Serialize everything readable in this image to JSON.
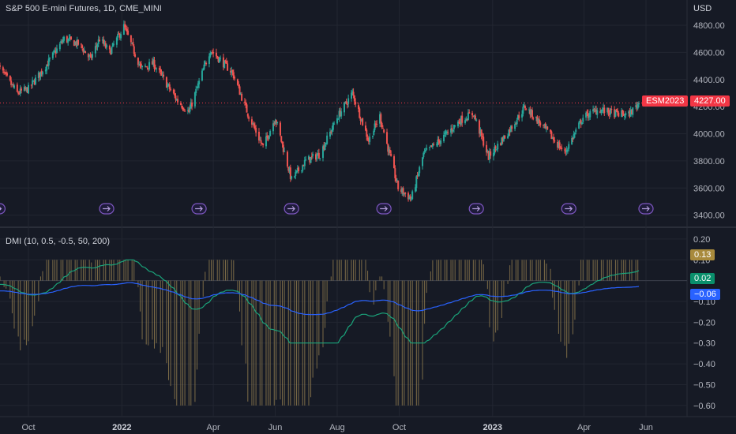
{
  "chart_data": [
    {
      "type": "candlestick",
      "title": "S&P 500 E-mini Futures, 1D, CME_MINI",
      "currency": "USD",
      "y_ticks": [
        "4800.00",
        "4600.00",
        "4400.00",
        "4200.00",
        "4000.00",
        "3800.00",
        "3600.00",
        "3400.00"
      ],
      "ylim": [
        3340,
        4870
      ],
      "x_ticks": [
        {
          "label": "Oct",
          "bold": false
        },
        {
          "label": "2022",
          "bold": true
        },
        {
          "label": "Apr",
          "bold": false
        },
        {
          "label": "Jun",
          "bold": false
        },
        {
          "label": "Aug",
          "bold": false
        },
        {
          "label": "Oct",
          "bold": false
        },
        {
          "label": "2023",
          "bold": true
        },
        {
          "label": "Apr",
          "bold": false
        },
        {
          "label": "Jun",
          "bold": false
        }
      ],
      "symbol_label": "ESM2023",
      "last_price": "4227.00",
      "last_value": 4227,
      "approx_close_path": [
        {
          "date": "2021-09-01",
          "close": 4500
        },
        {
          "date": "2021-09-20",
          "close": 4300
        },
        {
          "date": "2021-10-01",
          "close": 4330
        },
        {
          "date": "2021-10-20",
          "close": 4520
        },
        {
          "date": "2021-11-05",
          "close": 4700
        },
        {
          "date": "2021-11-20",
          "close": 4660
        },
        {
          "date": "2021-12-01",
          "close": 4550
        },
        {
          "date": "2021-12-10",
          "close": 4700
        },
        {
          "date": "2021-12-20",
          "close": 4600
        },
        {
          "date": "2022-01-03",
          "close": 4790
        },
        {
          "date": "2022-01-20",
          "close": 4480
        },
        {
          "date": "2022-02-01",
          "close": 4520
        },
        {
          "date": "2022-02-24",
          "close": 4250
        },
        {
          "date": "2022-03-08",
          "close": 4160
        },
        {
          "date": "2022-03-29",
          "close": 4620
        },
        {
          "date": "2022-04-20",
          "close": 4450
        },
        {
          "date": "2022-05-05",
          "close": 4150
        },
        {
          "date": "2022-05-20",
          "close": 3900
        },
        {
          "date": "2022-06-01",
          "close": 4120
        },
        {
          "date": "2022-06-17",
          "close": 3660
        },
        {
          "date": "2022-07-01",
          "close": 3800
        },
        {
          "date": "2022-07-15",
          "close": 3850
        },
        {
          "date": "2022-08-01",
          "close": 4120
        },
        {
          "date": "2022-08-16",
          "close": 4300
        },
        {
          "date": "2022-09-01",
          "close": 3950
        },
        {
          "date": "2022-09-12",
          "close": 4130
        },
        {
          "date": "2022-09-30",
          "close": 3600
        },
        {
          "date": "2022-10-13",
          "close": 3520
        },
        {
          "date": "2022-10-25",
          "close": 3850
        },
        {
          "date": "2022-11-10",
          "close": 3950
        },
        {
          "date": "2022-11-30",
          "close": 4100
        },
        {
          "date": "2022-12-13",
          "close": 4150
        },
        {
          "date": "2022-12-28",
          "close": 3830
        },
        {
          "date": "2023-01-15",
          "close": 4000
        },
        {
          "date": "2023-02-02",
          "close": 4200
        },
        {
          "date": "2023-02-20",
          "close": 4050
        },
        {
          "date": "2023-03-13",
          "close": 3860
        },
        {
          "date": "2023-03-31",
          "close": 4120
        },
        {
          "date": "2023-04-15",
          "close": 4180
        },
        {
          "date": "2023-05-01",
          "close": 4150
        },
        {
          "date": "2023-05-15",
          "close": 4140
        },
        {
          "date": "2023-05-25",
          "close": 4227
        }
      ]
    },
    {
      "type": "indicator",
      "title": "DMI (10, 0.5, -0.5, 50, 200)",
      "y_ticks": [
        "0.20",
        "0.10",
        "0.00",
        "−0.10",
        "−0.20",
        "−0.30",
        "−0.40",
        "−0.50",
        "−0.60"
      ],
      "ylim": [
        -0.65,
        0.23
      ],
      "histogram_last": "0.13",
      "green_last": "0.02",
      "blue_last": "−0.06",
      "histogram_color": "#8e7a4e",
      "green_color": "#1aa37a",
      "blue_color": "#2962ff"
    }
  ],
  "dividend_markers": 8,
  "colors": {
    "up": "#26a69a",
    "down": "#ef5350",
    "bg": "#161a25",
    "grid": "#222631"
  }
}
